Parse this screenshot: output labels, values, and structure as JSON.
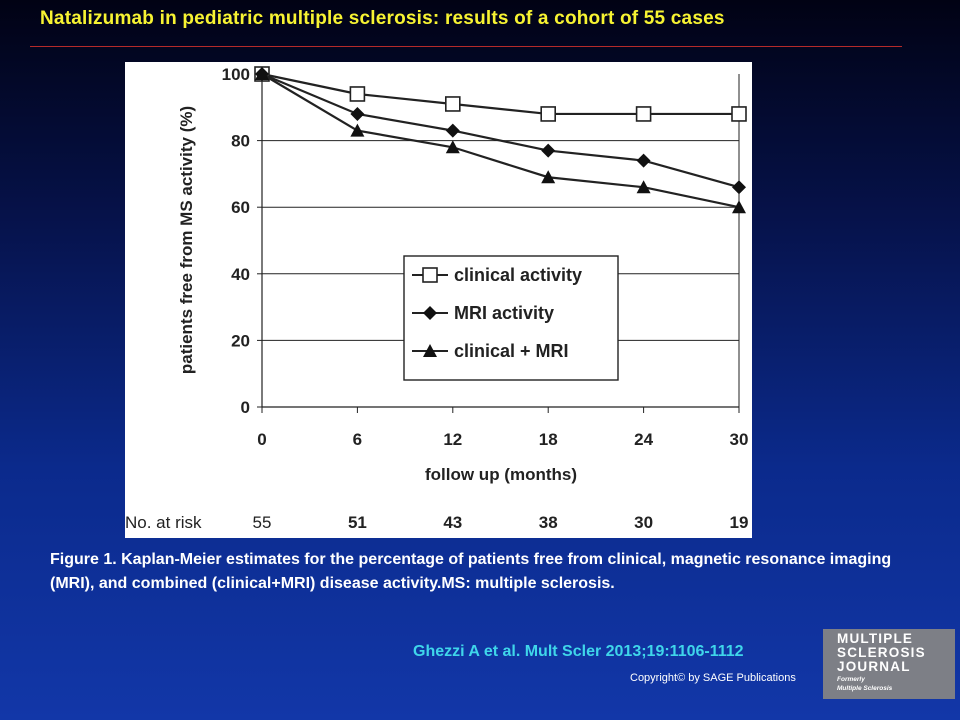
{
  "slide": {
    "title": "Natalizumab in pediatric multiple sclerosis: results of a cohort of 55 cases",
    "caption": "Figure 1. Kaplan-Meier estimates for the percentage of patients free from clinical, magnetic resonance imaging (MRI), and combined (clinical+MRI) disease activity.MS: multiple sclerosis.",
    "citation": "Ghezzi A et al. Mult Scler 2013;19:1106-1112",
    "copyright": "Copyright© by SAGE Publications",
    "logo": {
      "line1": "MULTIPLE",
      "line2": "SCLEROSIS",
      "line3": "JOURNAL",
      "line4": "Formerly",
      "line5": "Multiple Sclerosis"
    },
    "colors": {
      "title": "#f7f332",
      "citation": "#3fd6ea",
      "rule": "#b52a2a"
    }
  },
  "chart_data": {
    "type": "line",
    "xlabel": "follow up (months)",
    "ylabel": "patients free from MS activity (%)",
    "x": [
      0,
      6,
      12,
      18,
      24,
      30
    ],
    "xticks": [
      "0",
      "6",
      "12",
      "18",
      "24",
      "30"
    ],
    "yticks": [
      "0",
      "20",
      "40",
      "60",
      "80",
      "100"
    ],
    "xlim": [
      0,
      30
    ],
    "ylim": [
      0,
      100
    ],
    "grid": "horizontal",
    "legend_position": "center-bottom",
    "series": [
      {
        "name": "clinical activity",
        "marker": "open-square",
        "values": [
          100,
          94,
          91,
          88,
          88,
          88
        ]
      },
      {
        "name": "MRI activity",
        "marker": "diamond",
        "values": [
          100,
          88,
          83,
          77,
          74,
          66
        ]
      },
      {
        "name": "clinical + MRI",
        "marker": "triangle",
        "values": [
          100,
          83,
          78,
          69,
          66,
          60
        ]
      }
    ],
    "risk_table": {
      "label": "No. at risk",
      "values": [
        "55",
        "51",
        "43",
        "38",
        "30",
        "19"
      ]
    }
  }
}
